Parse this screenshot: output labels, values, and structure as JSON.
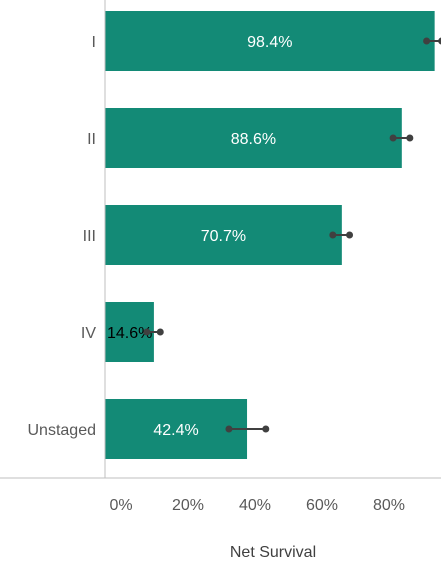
{
  "chart_data": {
    "type": "bar",
    "orientation": "horizontal",
    "categories": [
      "I",
      "II",
      "III",
      "IV",
      "Unstaged"
    ],
    "values": [
      98.4,
      88.6,
      70.7,
      14.6,
      42.4
    ],
    "value_labels": [
      "98.4%",
      "88.6%",
      "70.7%",
      "14.6%",
      "42.4%"
    ],
    "error_bars": [
      {
        "low": 96.0,
        "high": 100.5
      },
      {
        "low": 86.0,
        "high": 91.0
      },
      {
        "low": 68.0,
        "high": 73.0
      },
      {
        "low": 12.5,
        "high": 16.5
      },
      {
        "low": 37.0,
        "high": 48.0
      }
    ],
    "xlabel": "Net Survival",
    "ylabel": "",
    "xlim": [
      0,
      100
    ],
    "xticks": [
      0,
      20,
      40,
      60,
      80
    ],
    "xtick_labels": [
      "0%",
      "20%",
      "40%",
      "60%",
      "80%"
    ],
    "grid": false,
    "bar_color": "#138a76",
    "errorbar_color": "#404040"
  }
}
